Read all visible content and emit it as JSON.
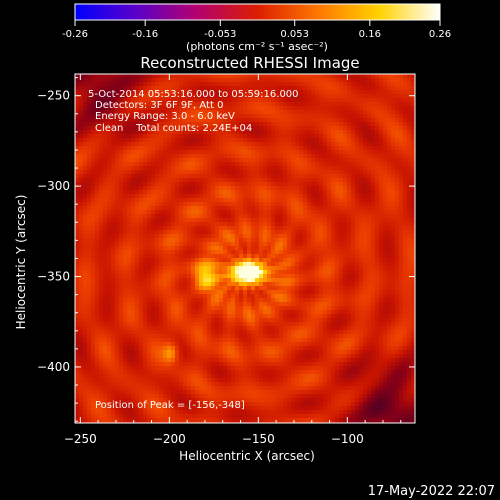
{
  "colorbar": {
    "ticks": [
      "-0.26",
      "-0.16",
      "-0.053",
      "0.053",
      "0.16",
      "0.26"
    ],
    "units_text": "(photons cm⁻² s⁻¹ asec⁻²)",
    "range": [
      -0.26,
      0.26
    ],
    "colors": [
      "#0000ff",
      "#5a00c8",
      "#b4006e",
      "#dc1e00",
      "#ff7800",
      "#ffd200",
      "#ffffff"
    ]
  },
  "plot": {
    "info_lines": [
      "5-Oct-2014 05:53:16.000 to 05:59:16.000",
      "Detectors: 3F 6F 9F, Att 0",
      "Energy Range: 3.0 - 6.0 keV",
      "Clean    Total counts: 2.24E+04"
    ],
    "peak_label": "Position of Peak = [-156,-348]"
  },
  "footer": {
    "timestamp": "17-May-2022 22:07"
  },
  "chart_data": {
    "type": "heatmap",
    "title": "Reconstructed RHESSI Image",
    "xlabel": "Heliocentric X (arcsec)",
    "ylabel": "Heliocentric Y (arcsec)",
    "xlim": [
      -253,
      -62
    ],
    "ylim": [
      -431,
      -238
    ],
    "x_ticks": [
      -250,
      -200,
      -150,
      -100
    ],
    "y_ticks": [
      -250,
      -300,
      -350,
      -400
    ],
    "peak": {
      "x": -156,
      "y": -348
    },
    "sources": [
      {
        "x": -156,
        "y": -348,
        "intensity": 0.26
      },
      {
        "x": -180,
        "y": -350,
        "intensity": 0.17
      },
      {
        "x": -199,
        "y": -392,
        "intensity": 0.15
      }
    ],
    "colorscale_range": [
      -0.26,
      0.26
    ]
  }
}
